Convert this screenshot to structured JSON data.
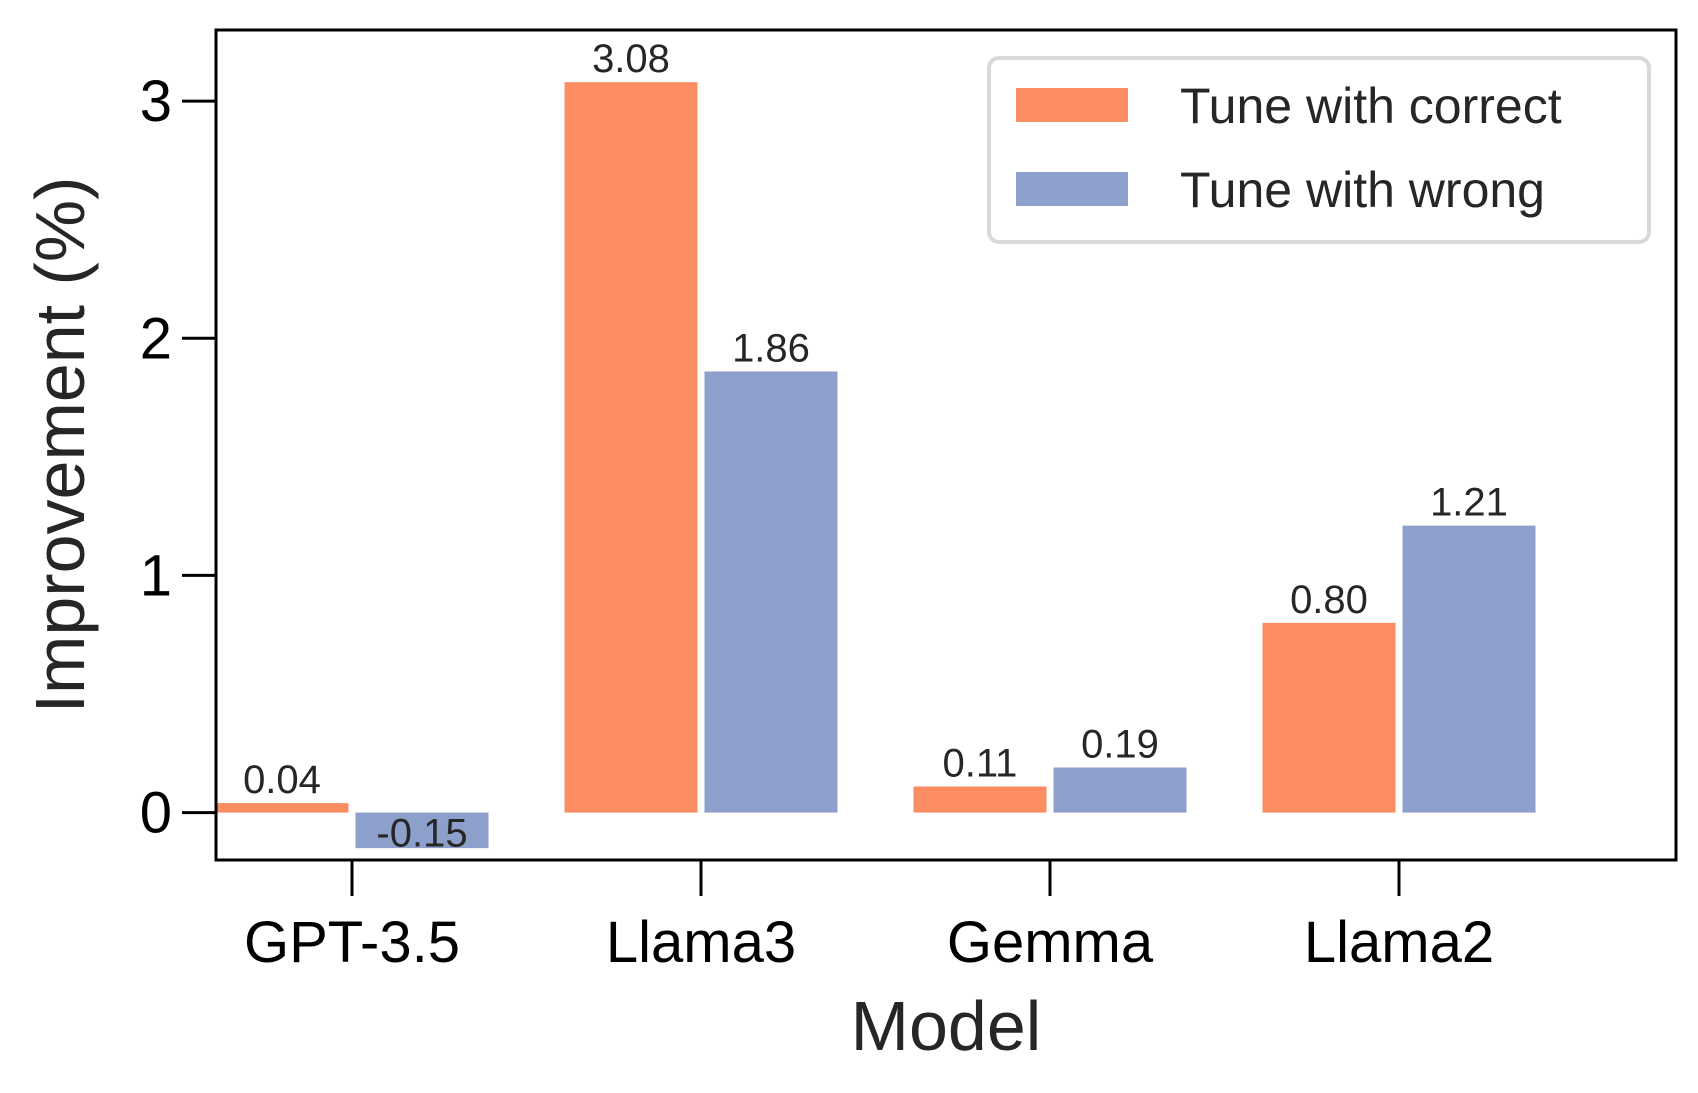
{
  "chart_data": {
    "type": "bar",
    "title": "",
    "xlabel": "Model",
    "ylabel": "Improvement (%)",
    "categories": [
      "GPT-3.5",
      "Llama3",
      "Gemma",
      "Llama2"
    ],
    "series": [
      {
        "name": "Tune with correct",
        "color": "#fc8d62",
        "values": [
          0.04,
          3.08,
          0.11,
          0.8
        ],
        "labels": [
          "0.04",
          "3.08",
          "0.11",
          "0.80"
        ]
      },
      {
        "name": "Tune with wrong",
        "color": "#8da0cb",
        "values": [
          -0.15,
          1.86,
          0.19,
          1.21
        ],
        "labels": [
          "-0.15",
          "1.86",
          "0.19",
          "1.21"
        ]
      }
    ],
    "yticks": [
      0,
      1,
      2,
      3
    ],
    "ytick_labels": [
      "0",
      "1",
      "2",
      "3"
    ],
    "ylim": [
      -0.2,
      3.3
    ],
    "grid": false,
    "legend_position": "top-right"
  }
}
